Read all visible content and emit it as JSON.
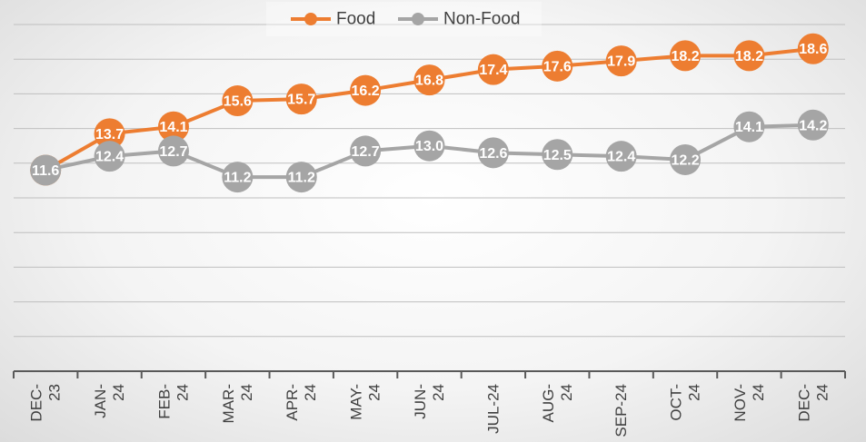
{
  "chart_data": {
    "type": "line",
    "categories": [
      "DEC-23",
      "JAN-24",
      "FEB-24",
      "MAR-24",
      "APR-24",
      "MAY-24",
      "JUN-24",
      "JUL-24",
      "AUG-24",
      "SEP-24",
      "OCT-24",
      "NOV-24",
      "DEC-24"
    ],
    "tick_labels": [
      [
        "DEC-",
        "23"
      ],
      [
        "JAN-",
        "24"
      ],
      [
        "FEB-",
        "24"
      ],
      [
        "MAR-",
        "24"
      ],
      [
        "APR-",
        "24"
      ],
      [
        "MAY-",
        "24"
      ],
      [
        "JUN-",
        "24"
      ],
      [
        "JUL-24"
      ],
      [
        "AUG-",
        "24"
      ],
      [
        "SEP-24"
      ],
      [
        "OCT-",
        "24"
      ],
      [
        "NOV-",
        "24"
      ],
      [
        "DEC-",
        "24"
      ]
    ],
    "series": [
      {
        "name": "Food",
        "color": "#ED7D31",
        "values": [
          11.6,
          13.7,
          14.1,
          15.6,
          15.7,
          16.2,
          16.8,
          17.4,
          17.6,
          17.9,
          18.2,
          18.2,
          18.6
        ]
      },
      {
        "name": "Non-Food",
        "color": "#A5A5A5",
        "values": [
          11.6,
          12.4,
          12.7,
          11.2,
          11.2,
          12.7,
          13.0,
          12.6,
          12.5,
          12.4,
          12.2,
          14.1,
          14.2
        ]
      }
    ],
    "title": "",
    "xlabel": "",
    "ylabel": "",
    "ylim": [
      0,
      20
    ],
    "grid": true,
    "legend_position": "top-center",
    "data_labels": true,
    "label_color": "#FFFFFF",
    "grid_color": "#BFBFBF",
    "axis_color": "#595959"
  }
}
